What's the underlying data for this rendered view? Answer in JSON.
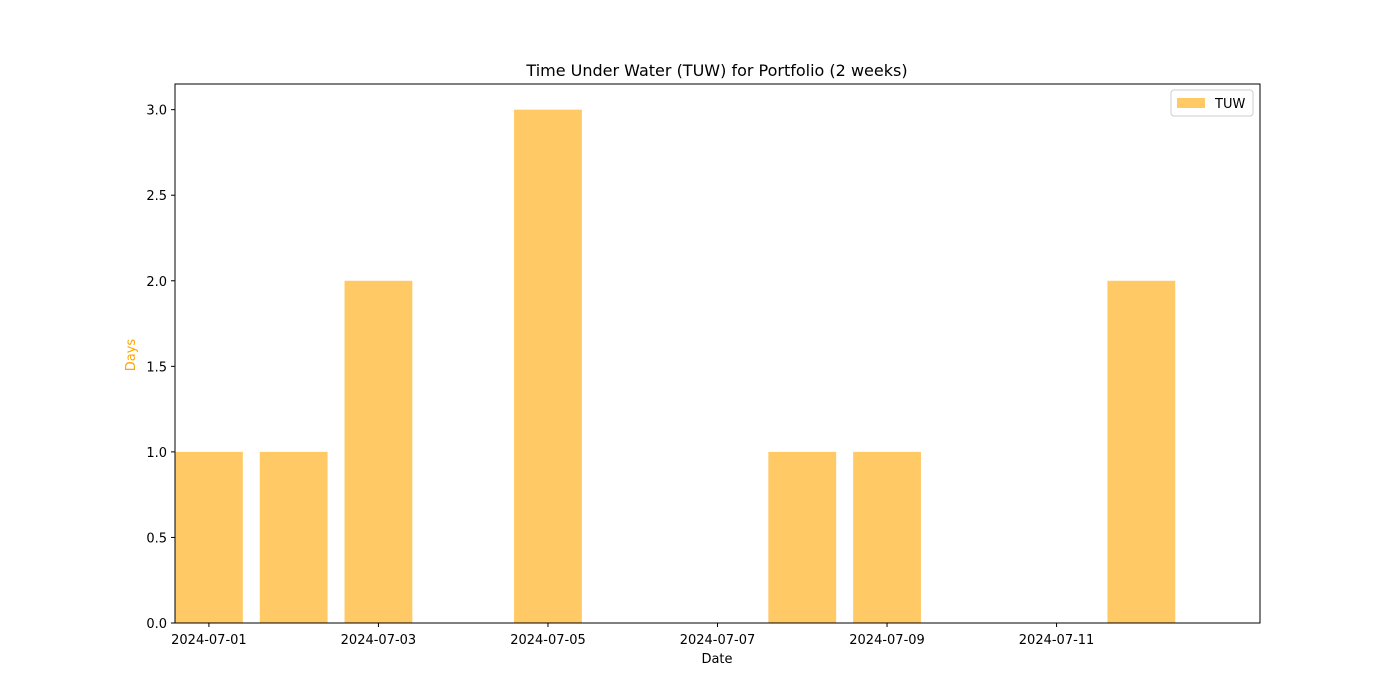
{
  "chart_data": {
    "type": "bar",
    "title": "Time Under Water (TUW) for Portfolio (2 weeks)",
    "xlabel": "Date",
    "ylabel": "Days",
    "ylabel_color": "#ffa500",
    "bar_color": "#ffc966",
    "legend": {
      "label": "TUW",
      "placement": "top-right"
    },
    "grid": false,
    "xlim": [
      "2024-06-30T14:24",
      "2024-07-13T09:36"
    ],
    "ylim": [
      0,
      3.15
    ],
    "x": [
      "2024-07-01",
      "2024-07-02",
      "2024-07-03",
      "2024-07-04",
      "2024-07-05",
      "2024-07-06",
      "2024-07-07",
      "2024-07-08",
      "2024-07-09",
      "2024-07-10",
      "2024-07-11",
      "2024-07-12"
    ],
    "values": [
      1,
      1,
      2,
      0,
      3,
      0,
      0,
      1,
      1,
      0,
      0,
      2
    ],
    "bar_width_days": 0.8,
    "x_ticks": [
      "2024-07-01",
      "2024-07-03",
      "2024-07-05",
      "2024-07-07",
      "2024-07-09",
      "2024-07-11"
    ],
    "y_ticks": [
      "0.0",
      "0.5",
      "1.0",
      "1.5",
      "2.0",
      "2.5",
      "3.0"
    ]
  }
}
